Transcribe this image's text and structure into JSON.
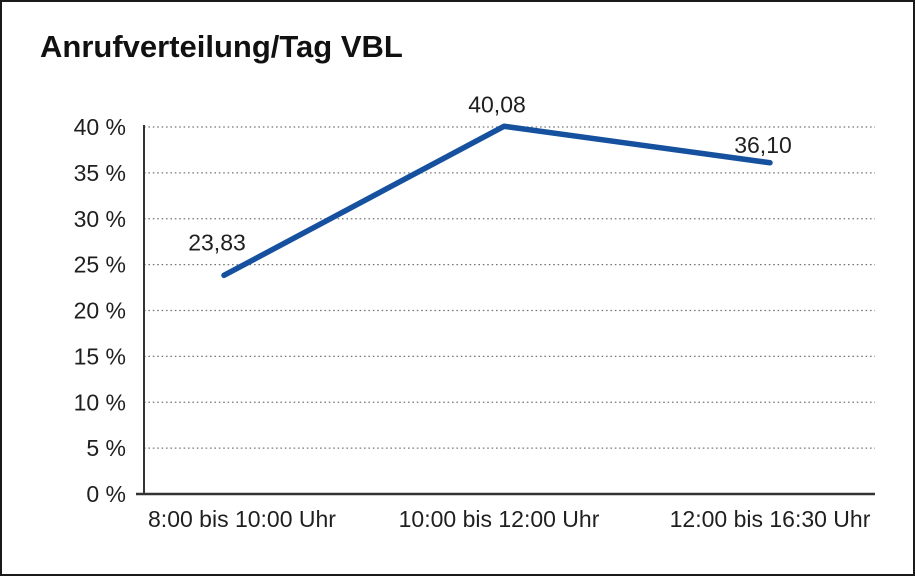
{
  "chart_data": {
    "type": "line",
    "title": "Anrufverteilung/Tag VBL",
    "categories": [
      "8:00 bis 10:00 Uhr",
      "10:00 bis 12:00 Uhr",
      "12:00 bis 16:30 Uhr"
    ],
    "values": [
      23.83,
      40.08,
      36.1
    ],
    "value_labels": [
      "23,83",
      "40,08",
      "36,10"
    ],
    "xlabel": "",
    "ylabel": "",
    "ylim": [
      0,
      40
    ],
    "ytick_step": 5,
    "ytick_labels": [
      "0 %",
      "5 %",
      "10 %",
      "15 %",
      "20 %",
      "25 %",
      "30 %",
      "35 %",
      "40 %"
    ],
    "grid": "horizontal-dotted",
    "legend": "none",
    "line_color": "#15519E",
    "grid_color": "#787878",
    "axis_color": "#333333",
    "text_color": "#1f1f1f",
    "background": "#ffffff",
    "border_color": "#1a1a1a"
  }
}
